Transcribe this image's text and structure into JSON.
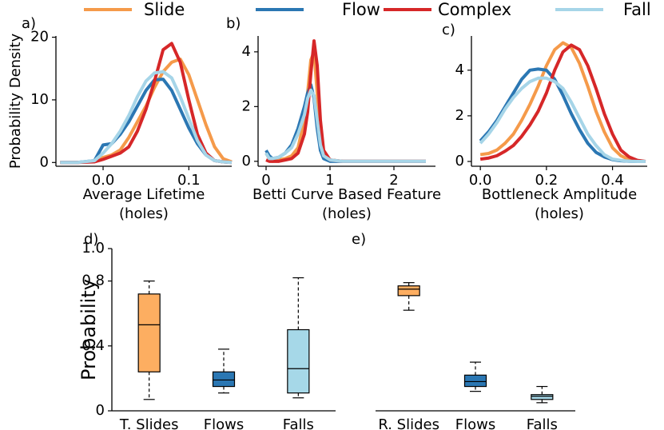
{
  "chart_data": [
    {
      "type": "line",
      "label": "a)",
      "ylabel": "Probability Density",
      "xlabel": [
        "Average Lifetime",
        "(holes)"
      ],
      "xlim": [
        -0.055,
        0.15
      ],
      "ylim": [
        -0.6,
        20.2
      ],
      "xticks": [
        {
          "value": 0,
          "label": "0.0"
        },
        {
          "value": 0.1,
          "label": "0.1"
        }
      ],
      "yticks": [
        0,
        10,
        20
      ],
      "x": [
        -0.05,
        -0.03,
        -0.01,
        0,
        0.01,
        0.02,
        0.03,
        0.04,
        0.05,
        0.06,
        0.07,
        0.08,
        0.09,
        0.1,
        0.11,
        0.12,
        0.13,
        0.14,
        0.15
      ],
      "series": [
        {
          "name": "Slide",
          "color": "#f59a4a",
          "values": [
            0,
            0,
            0.2,
            0.8,
            1.2,
            2,
            4,
            6.5,
            9,
            12,
            14.5,
            16,
            16.5,
            14,
            10,
            6,
            2.5,
            0.6,
            0.1
          ]
        },
        {
          "name": "Flow",
          "color": "#2b77b3",
          "values": [
            0,
            0,
            0.3,
            2.8,
            3,
            4.5,
            6.5,
            9,
            11.5,
            13.2,
            13.3,
            11.5,
            8.5,
            5.5,
            3,
            1.2,
            0.3,
            0.1,
            0
          ]
        },
        {
          "name": "Complex",
          "color": "#d62728",
          "values": [
            0,
            0,
            0.1,
            0.5,
            1,
            1.5,
            2.5,
            5,
            8.5,
            13,
            18,
            19,
            16,
            10,
            4.5,
            1.5,
            0.3,
            0.1,
            0
          ]
        },
        {
          "name": "Fall",
          "color": "#a6d5e8",
          "values": [
            0,
            0,
            0.3,
            1.5,
            3,
            5,
            7.5,
            10.5,
            13,
            14.3,
            14.5,
            13.5,
            10.5,
            7,
            3.5,
            1.2,
            0.3,
            0.1,
            0
          ]
        }
      ]
    },
    {
      "type": "line",
      "label": "b)",
      "xlabel": [
        "Betti Curve Based Feature",
        "(holes)"
      ],
      "xlim": [
        -0.125,
        2.65
      ],
      "ylim": [
        -0.18,
        4.58
      ],
      "xticks": [
        0,
        1,
        2
      ],
      "yticks": [
        0,
        2,
        4
      ],
      "x": [
        0,
        0.05,
        0.1,
        0.2,
        0.3,
        0.4,
        0.5,
        0.6,
        0.65,
        0.7,
        0.75,
        0.8,
        0.85,
        0.9,
        1.0,
        1.2,
        1.5,
        2.0,
        2.5
      ],
      "series": [
        {
          "name": "Slide",
          "color": "#f59a4a",
          "values": [
            0.3,
            0.1,
            0,
            0.05,
            0.1,
            0.2,
            0.5,
            1.5,
            2.5,
            3.7,
            4,
            2.5,
            1,
            0.3,
            0.05,
            0,
            0,
            0,
            0
          ]
        },
        {
          "name": "Flow",
          "color": "#2b77b3",
          "values": [
            0.4,
            0.2,
            0.1,
            0.15,
            0.3,
            0.6,
            1.2,
            2,
            2.5,
            2.8,
            2.3,
            1.2,
            0.4,
            0.1,
            0,
            0,
            0,
            0,
            0
          ]
        },
        {
          "name": "Complex",
          "color": "#d62728",
          "values": [
            0.05,
            0,
            0,
            0,
            0.05,
            0.1,
            0.3,
            1,
            1.8,
            3.2,
            4.4,
            3.5,
            1.5,
            0.4,
            0.05,
            0,
            0,
            0,
            0
          ]
        },
        {
          "name": "Fall",
          "color": "#a6d5e8",
          "values": [
            0.3,
            0.1,
            0.1,
            0.15,
            0.3,
            0.5,
            1,
            1.7,
            2.3,
            2.6,
            2.4,
            1.5,
            0.6,
            0.2,
            0.05,
            0,
            0,
            0,
            0
          ]
        }
      ]
    },
    {
      "type": "line",
      "label": "c)",
      "xlabel": [
        "Bottleneck Amplitude",
        "(holes)"
      ],
      "xlim": [
        -0.027,
        0.505
      ],
      "ylim": [
        -0.21,
        5.5
      ],
      "xticks": [
        {
          "value": 0,
          "label": "0.0"
        },
        {
          "value": 0.2,
          "label": "0.2"
        },
        {
          "value": 0.4,
          "label": "0.4"
        }
      ],
      "yticks": [
        0,
        2,
        4
      ],
      "x": [
        0,
        0.025,
        0.05,
        0.075,
        0.1,
        0.125,
        0.15,
        0.175,
        0.2,
        0.225,
        0.25,
        0.275,
        0.3,
        0.325,
        0.35,
        0.375,
        0.4,
        0.425,
        0.45,
        0.475,
        0.5
      ],
      "series": [
        {
          "name": "Slide",
          "color": "#f59a4a",
          "values": [
            0.3,
            0.35,
            0.5,
            0.8,
            1.2,
            1.8,
            2.5,
            3.3,
            4.2,
            4.9,
            5.2,
            5,
            4.3,
            3.3,
            2.2,
            1.3,
            0.6,
            0.25,
            0.08,
            0.02,
            0
          ]
        },
        {
          "name": "Flow",
          "color": "#2b77b3",
          "values": [
            0.9,
            1.3,
            1.8,
            2.4,
            3,
            3.6,
            4,
            4.05,
            4,
            3.6,
            2.9,
            2.1,
            1.4,
            0.8,
            0.4,
            0.2,
            0.08,
            0.03,
            0.01,
            0,
            0
          ]
        },
        {
          "name": "Complex",
          "color": "#d62728",
          "values": [
            0.1,
            0.15,
            0.25,
            0.45,
            0.7,
            1.1,
            1.6,
            2.2,
            3,
            4,
            4.8,
            5.1,
            4.9,
            4.2,
            3.2,
            2.1,
            1.2,
            0.5,
            0.2,
            0.05,
            0
          ]
        },
        {
          "name": "Fall",
          "color": "#a6d5e8",
          "values": [
            0.8,
            1.2,
            1.7,
            2.3,
            2.8,
            3.2,
            3.5,
            3.65,
            3.65,
            3.5,
            3.2,
            2.6,
            1.9,
            1.2,
            0.7,
            0.3,
            0.1,
            0.05,
            0.01,
            0,
            0
          ]
        }
      ]
    },
    {
      "type": "box",
      "label": "d)",
      "ylabel": "Probability",
      "ylim": [
        0,
        1
      ],
      "yticks": [
        0,
        0.4,
        0.8,
        {
          "value": 1,
          "label": "1.0"
        }
      ],
      "categories": [
        "T. Slides",
        "Flows",
        "Falls"
      ],
      "colors": [
        "#fdae61",
        "#2b77b3",
        "#a6d8e8"
      ],
      "boxes": [
        {
          "whislo": 0.07,
          "q1": 0.24,
          "med": 0.53,
          "q3": 0.72,
          "whishi": 0.8
        },
        {
          "whislo": 0.11,
          "q1": 0.15,
          "med": 0.19,
          "q3": 0.24,
          "whishi": 0.38
        },
        {
          "whislo": 0.08,
          "q1": 0.11,
          "med": 0.26,
          "q3": 0.5,
          "whishi": 0.82
        }
      ]
    },
    {
      "type": "box",
      "label": "e)",
      "ylim": [
        0,
        1
      ],
      "categories": [
        "R. Slides",
        "Flows",
        "Falls"
      ],
      "colors": [
        "#fdae61",
        "#2b77b3",
        "#a6d8e8"
      ],
      "boxes": [
        {
          "whislo": 0.62,
          "q1": 0.71,
          "med": 0.75,
          "q3": 0.77,
          "whishi": 0.79
        },
        {
          "whislo": 0.12,
          "q1": 0.15,
          "med": 0.18,
          "q3": 0.22,
          "whishi": 0.3
        },
        {
          "whislo": 0.05,
          "q1": 0.07,
          "med": 0.09,
          "q3": 0.1,
          "whishi": 0.15
        }
      ]
    }
  ]
}
